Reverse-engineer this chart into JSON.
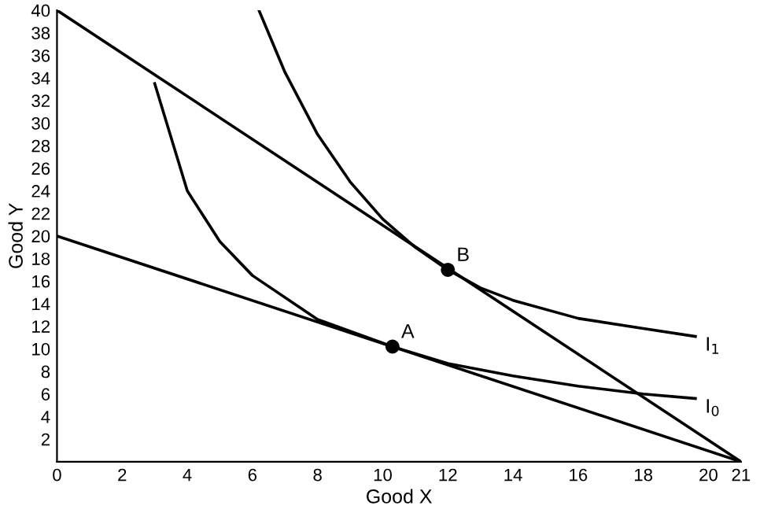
{
  "chart_data": {
    "type": "line",
    "xlabel": "Good X",
    "ylabel": "Good Y",
    "xlim": [
      0,
      21
    ],
    "ylim": [
      0,
      40
    ],
    "xticks": [
      0,
      2,
      4,
      6,
      8,
      10,
      12,
      14,
      16,
      18,
      20,
      21
    ],
    "yticks": [
      2,
      4,
      6,
      8,
      10,
      12,
      14,
      16,
      18,
      20,
      22,
      24,
      26,
      28,
      30,
      32,
      34,
      36,
      38,
      40
    ],
    "grid": false,
    "legend": false,
    "line_style": "solid",
    "series": [
      {
        "color": "#000000",
        "x": [
          0,
          21
        ],
        "values": [
          20,
          0
        ]
      },
      {
        "color": "#000000",
        "x": [
          0,
          21
        ],
        "values": [
          40,
          0
        ]
      },
      {
        "name": "I$_{0}$",
        "color": "#000000",
        "x": [
          3,
          4,
          5,
          6,
          8,
          10.3,
          12,
          14,
          16,
          18,
          19.6
        ],
        "values": [
          33.5,
          24,
          19.5,
          16.5,
          12.6,
          10.2,
          8.7,
          7.6,
          6.7,
          6,
          5.6
        ]
      },
      {
        "name": "I$_{1}$",
        "color": "#000000",
        "x": [
          6.2,
          7,
          8,
          9,
          10,
          11,
          12,
          13,
          14,
          16,
          18,
          19.6
        ],
        "values": [
          40,
          34.5,
          29,
          24.8,
          21.5,
          19,
          17,
          15.4,
          14.3,
          12.7,
          11.8,
          11.1
        ]
      },
      {
        "type": "scatter",
        "marker": "circle",
        "color": "#000000",
        "x": [
          10.3,
          12
        ],
        "values": [
          10.2,
          17
        ]
      }
    ],
    "annotations": [
      {
        "text": "A",
        "x": 10.3,
        "y": 10.2
      },
      {
        "text": "B",
        "x": 12,
        "y": 17
      }
    ]
  }
}
